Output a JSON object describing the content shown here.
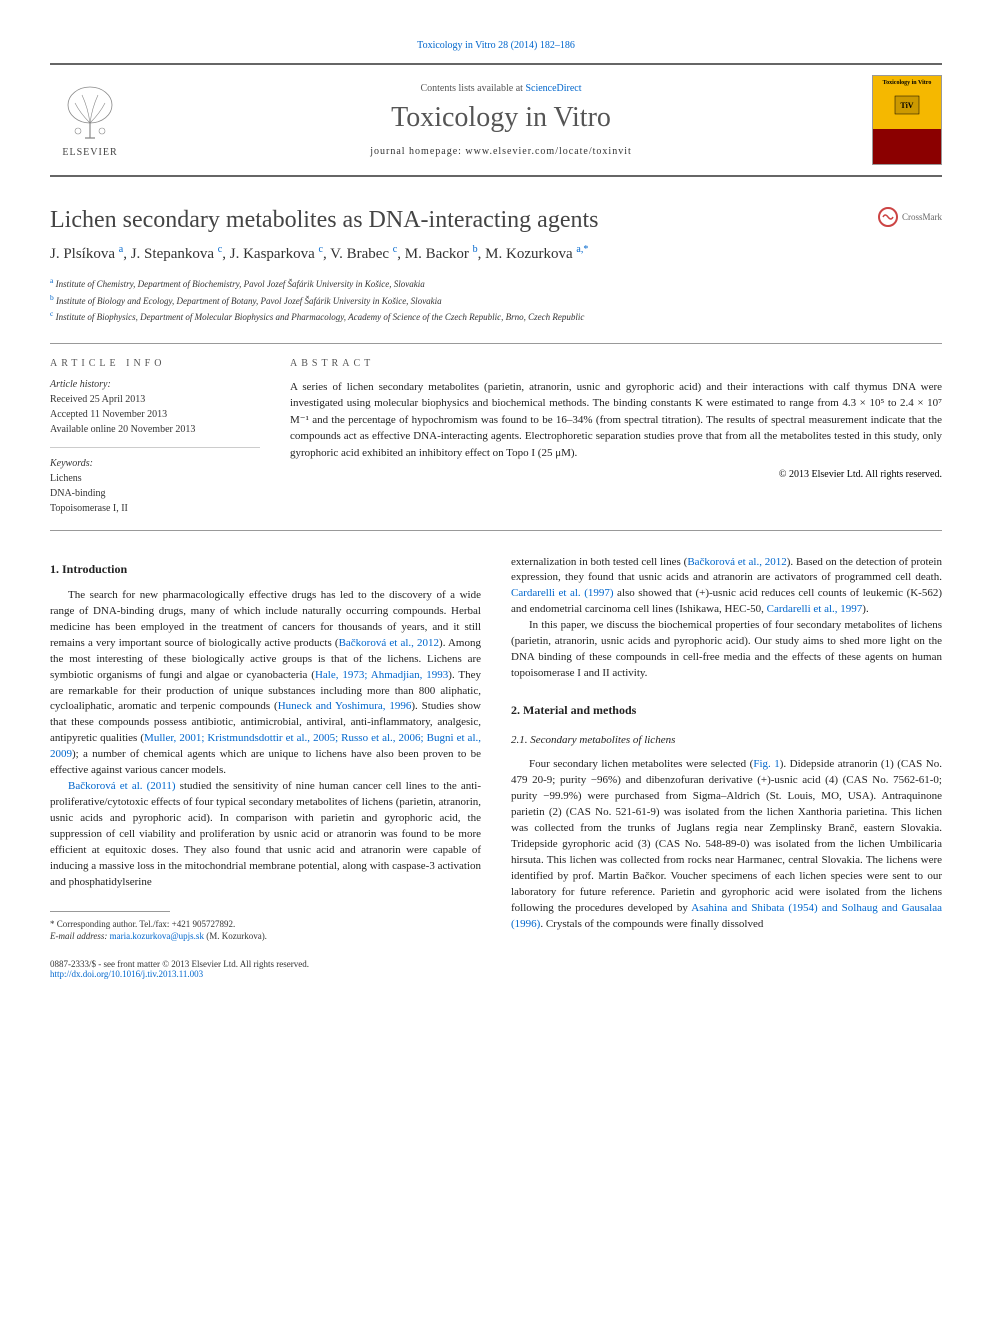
{
  "journal_ref": "Toxicology in Vitro 28 (2014) 182–186",
  "header": {
    "elsevier": "ELSEVIER",
    "contents_prefix": "Contents lists available at ",
    "contents_link": "ScienceDirect",
    "journal_name": "Toxicology in Vitro",
    "homepage_label": "journal homepage: www.elsevier.com/locate/toxinvit",
    "cover_title": "Toxicology in Vitro",
    "crossmark": "CrossMark"
  },
  "article": {
    "title": "Lichen secondary metabolites as DNA-interacting agents",
    "authors_html": "J. Plsíkova <sup>a</sup>, J. Stepankova <sup>c</sup>, J. Kasparkova <sup>c</sup>, V. Brabec <sup>c</sup>, M. Backor <sup>b</sup>, M. Kozurkova <sup>a,*</sup>",
    "affiliations": [
      {
        "sup": "a",
        "text": "Institute of Chemistry, Department of Biochemistry, Pavol Jozef Šafárik University in Košice, Slovakia"
      },
      {
        "sup": "b",
        "text": "Institute of Biology and Ecology, Department of Botany, Pavol Jozef Šafárik University in Košice, Slovakia"
      },
      {
        "sup": "c",
        "text": "Institute of Biophysics, Department of Molecular Biophysics and Pharmacology, Academy of Science of the Czech Republic, Brno, Czech Republic"
      }
    ]
  },
  "info": {
    "heading": "ARTICLE INFO",
    "history_label": "Article history:",
    "history": [
      "Received 25 April 2013",
      "Accepted 11 November 2013",
      "Available online 20 November 2013"
    ],
    "keywords_label": "Keywords:",
    "keywords": [
      "Lichens",
      "DNA-binding",
      "Topoisomerase I, II"
    ]
  },
  "abstract": {
    "heading": "ABSTRACT",
    "text": "A series of lichen secondary metabolites (parietin, atranorin, usnic and gyrophoric acid) and their interactions with calf thymus DNA were investigated using molecular biophysics and biochemical methods. The binding constants K were estimated to range from 4.3 × 10⁵ to 2.4 × 10⁷ M⁻¹ and the percentage of hypochromism was found to be 16–34% (from spectral titration). The results of spectral measurement indicate that the compounds act as effective DNA-interacting agents. Electrophoretic separation studies prove that from all the metabolites tested in this study, only gyrophoric acid exhibited an inhibitory effect on Topo I (25 μM).",
    "copyright": "© 2013 Elsevier Ltd. All rights reserved."
  },
  "body": {
    "intro_heading": "1. Introduction",
    "intro_p1": "The search for new pharmacologically effective drugs has led to the discovery of a wide range of DNA-binding drugs, many of which include naturally occurring compounds. Herbal medicine has been employed in the treatment of cancers for thousands of years, and it still remains a very important source of biologically active products (",
    "intro_r1": "Bačkorová et al., 2012",
    "intro_p1b": "). Among the most interesting of these biologically active groups is that of the lichens. Lichens are symbiotic organisms of fungi and algae or cyanobacteria (",
    "intro_r2": "Hale, 1973; Ahmadjian, 1993",
    "intro_p1c": "). They are remarkable for their production of unique substances including more than 800 aliphatic, cycloaliphatic, aromatic and terpenic compounds (",
    "intro_r3": "Huneck and Yoshimura, 1996",
    "intro_p1d": "). Studies show that these compounds possess antibiotic, antimicrobial, antiviral, anti-inflammatory, analgesic, antipyretic qualities (",
    "intro_r4": "Muller, 2001; Kristmundsdottir et al., 2005; Russo et al., 2006; Bugni et al., 2009",
    "intro_p1e": "); a number of chemical agents which are unique to lichens have also been proven to be effective against various cancer models.",
    "intro_p2a": "Bačkorová et al. (2011)",
    "intro_p2": " studied the sensitivity of nine human cancer cell lines to the anti-proliferative/cytotoxic effects of four typical secondary metabolites of lichens (parietin, atranorin, usnic acids and pyrophoric acid). In comparison with parietin and gyrophoric acid, the suppression of cell viability and proliferation by usnic acid or atranorin was found to be more efficient at equitoxic doses. They also found that usnic acid and atranorin were capable of inducing a massive loss in the mitochondrial membrane potential, along with caspase-3 activation and phosphatidylserine",
    "col2_p1a": "externalization in both tested cell lines (",
    "col2_r1": "Bačkorová et al., 2012",
    "col2_p1b": "). Based on the detection of protein expression, they found that usnic acids and atranorin are activators of programmed cell death. ",
    "col2_r2": "Cardarelli et al. (1997)",
    "col2_p1c": " also showed that (+)-usnic acid reduces cell counts of leukemic (K-562) and endometrial carcinoma cell lines (Ishikawa, HEC-50, ",
    "col2_r3": "Cardarelli et al., 1997",
    "col2_p1d": ").",
    "col2_p2": "In this paper, we discuss the biochemical properties of four secondary metabolites of lichens (parietin, atranorin, usnic acids and pyrophoric acid). Our study aims to shed more light on the DNA binding of these compounds in cell-free media and the effects of these agents on human topoisomerase I and II activity.",
    "methods_heading": "2. Material and methods",
    "sub_heading": "2.1. Secondary metabolites of lichens",
    "methods_p1a": "Four secondary lichen metabolites were selected (",
    "methods_r1": "Fig. 1",
    "methods_p1b": "). Didepside atranorin (1) (CAS No. 479 20-9; purity −96%) and dibenzofuran derivative (+)-usnic acid (4) (CAS No. 7562-61-0; purity −99.9%) were purchased from Sigma–Aldrich (St. Louis, MO, USA). Antraquinone parietin (2) (CAS No. 521-61-9) was isolated from the lichen Xanthoria parietina. This lichen was collected from the trunks of Juglans regia near Zemplinsky Branč, eastern Slovakia. Tridepside gyrophoric acid (3) (CAS No. 548-89-0) was isolated from the lichen Umbilicaria hirsuta. This lichen was collected from rocks near Harmanec, central Slovakia. The lichens were identified by prof. Martin Bačkor. Voucher specimens of each lichen species were sent to our laboratory for future reference. Parietin and gyrophoric acid were isolated from the lichens following the procedures developed by ",
    "methods_r2": "Asahina and Shibata (1954) and Solhaug and Gausalaa (1996)",
    "methods_p1c": ". Crystals of the compounds were finally dissolved"
  },
  "footnote": {
    "corr": "* Corresponding author. Tel./fax: +421 905727892.",
    "email_label": "E-mail address: ",
    "email": "maria.kozurkova@upjs.sk",
    "email_name": " (M. Kozurkova)."
  },
  "footer": {
    "issn": "0887-2333/$ - see front matter © 2013 Elsevier Ltd. All rights reserved.",
    "doi": "http://dx.doi.org/10.1016/j.tiv.2013.11.003"
  },
  "colors": {
    "link": "#0066cc",
    "cover_bg": "#f5b800",
    "cover_bottom": "#8b0000",
    "text": "#222222",
    "border": "#999999"
  }
}
